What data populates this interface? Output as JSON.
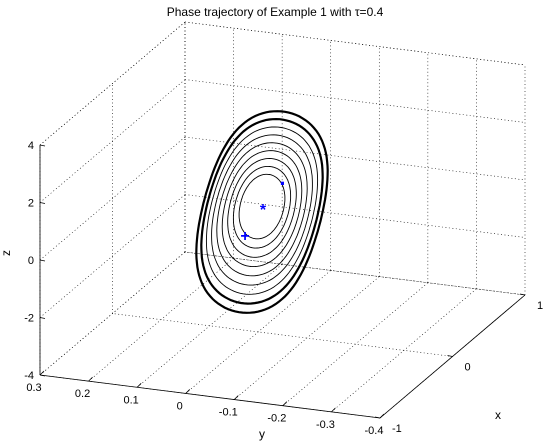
{
  "chart_data": {
    "type": "3d-line",
    "title": "Phase trajectory of Example 1 with τ=0.4",
    "xlabel": "x",
    "ylabel": "y",
    "zlabel": "z",
    "xlim": [
      -1,
      1
    ],
    "ylim": [
      -0.4,
      0.3
    ],
    "zlim": [
      -4,
      4
    ],
    "x_ticks": [
      "-1",
      "0",
      "1"
    ],
    "y_ticks": [
      "0.3",
      "0.2",
      "0.1",
      "0",
      "-0.1",
      "-0.2",
      "-0.3",
      "-0.4"
    ],
    "z_ticks": [
      "-4",
      "-2",
      "0",
      "2",
      "4"
    ],
    "grid": true,
    "series": [
      {
        "kind": "spiral-trajectory",
        "color": "#000000",
        "description_values": {
          "loops": 9,
          "outer_z_range": [
            -2.6,
            3.9
          ],
          "inner_z_range": [
            0.2,
            2.4
          ]
        }
      }
    ],
    "markers": [
      {
        "symbol": "+",
        "color": "#0000ff",
        "x": -0.1,
        "y": 0.02,
        "z": 0.4
      },
      {
        "symbol": "*",
        "color": "#0000ff",
        "x": 0.0,
        "y": -0.05,
        "z": 1.3
      },
      {
        "symbol": "·",
        "color": "#0000ff",
        "x": 0.1,
        "y": -0.08,
        "z": 2.3
      }
    ]
  }
}
